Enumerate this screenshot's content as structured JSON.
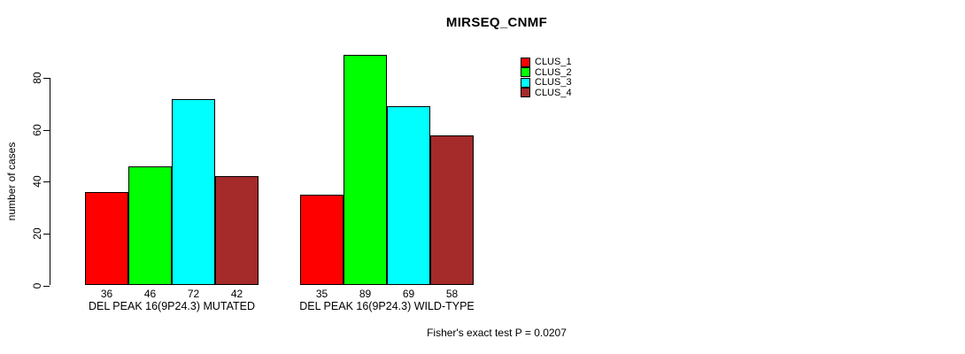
{
  "title": "MIRSEQ_CNMF",
  "ylabel": "number of cases",
  "footnote": "Fisher's exact test P = 0.0207",
  "chart_data": {
    "type": "bar",
    "title": "MIRSEQ_CNMF",
    "xlabel": "",
    "ylabel": "number of cases",
    "yticks": [
      0,
      20,
      40,
      60,
      80
    ],
    "ylim": [
      0,
      89
    ],
    "grid": false,
    "legend_position": "top-right",
    "bar_value_labels_shown": true,
    "categories": [
      "DEL PEAK 16(9P24.3) MUTATED",
      "DEL PEAK 16(9P24.3) WILD-TYPE"
    ],
    "series": [
      {
        "name": "CLUS_1",
        "color": "#ff0000",
        "values": [
          36,
          35
        ]
      },
      {
        "name": "CLUS_2",
        "color": "#00ff00",
        "values": [
          46,
          89
        ]
      },
      {
        "name": "CLUS_3",
        "color": "#00ffff",
        "values": [
          72,
          69
        ]
      },
      {
        "name": "CLUS_4",
        "color": "#a52a2a",
        "values": [
          42,
          58
        ]
      }
    ],
    "annotation": "Fisher's exact test P = 0.0207"
  }
}
